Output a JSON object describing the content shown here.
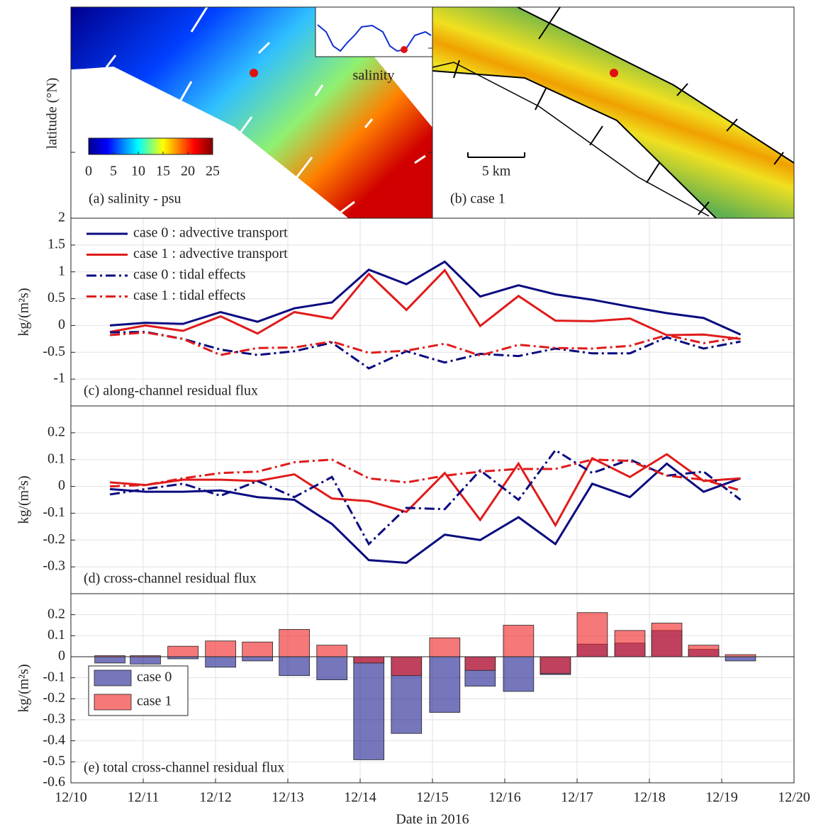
{
  "maps": {
    "ylabel": "latitude (°N)",
    "panel_a_label": "(a) salinity - psu",
    "panel_b_label": "(b) case 1",
    "inset_label": "salinity",
    "scale_bar": "5 km",
    "colorbar": {
      "lim": [
        0,
        25
      ],
      "ticks": [
        0,
        5,
        10,
        15,
        20,
        25
      ]
    }
  },
  "chart_data": [
    {
      "type": "line",
      "label": "(c) along-channel residual flux",
      "ylabel": "kg/(m²s)",
      "x": [
        10.54,
        11.03,
        11.55,
        12.07,
        12.58,
        13.09,
        13.61,
        14.12,
        14.64,
        15.17,
        15.66,
        16.19,
        16.7,
        17.21,
        17.73,
        18.24,
        18.75,
        19.26
      ],
      "xlim": [
        10,
        20
      ],
      "ylim": [
        -1.5,
        2
      ],
      "yticks": [
        -1,
        -0.5,
        0,
        0.5,
        1,
        1.5,
        2
      ],
      "grid": true,
      "legend": "upper left",
      "series": [
        {
          "name": "case 0 : advective transport",
          "color": "#0a0a80",
          "linestyle": "-",
          "values": [
            0,
            0.05,
            0.03,
            0.25,
            0.07,
            0.32,
            0.43,
            1.04,
            0.77,
            1.19,
            0.54,
            0.75,
            0.58,
            0.48,
            0.35,
            0.23,
            0.14,
            -0.17
          ]
        },
        {
          "name": "case 1 : advective transport",
          "color": "#e01b1b",
          "linestyle": "-",
          "values": [
            -0.12,
            0,
            -0.1,
            0.17,
            -0.15,
            0.25,
            0.13,
            0.96,
            0.29,
            1.03,
            -0.01,
            0.55,
            0.09,
            0.08,
            0.13,
            -0.18,
            -0.17,
            -0.25
          ]
        },
        {
          "name": "case 0 : tidal effects",
          "color": "#0a0a80",
          "linestyle": "-.",
          "values": [
            -0.13,
            -0.12,
            -0.25,
            -0.45,
            -0.55,
            -0.48,
            -0.32,
            -0.8,
            -0.48,
            -0.69,
            -0.53,
            -0.57,
            -0.43,
            -0.52,
            -0.52,
            -0.22,
            -0.43,
            -0.3
          ]
        },
        {
          "name": "case 1 : tidal effects",
          "color": "#e01b1b",
          "linestyle": "-.",
          "values": [
            -0.18,
            -0.13,
            -0.25,
            -0.55,
            -0.42,
            -0.41,
            -0.3,
            -0.51,
            -0.47,
            -0.34,
            -0.56,
            -0.36,
            -0.42,
            -0.43,
            -0.38,
            -0.18,
            -0.33,
            -0.22
          ]
        }
      ]
    },
    {
      "type": "line",
      "label": "(d) cross-channel residual flux",
      "ylabel": "kg/(m²s)",
      "x": [
        10.54,
        11.03,
        11.55,
        12.07,
        12.58,
        13.09,
        13.61,
        14.12,
        14.64,
        15.17,
        15.66,
        16.19,
        16.7,
        17.21,
        17.73,
        18.24,
        18.75,
        19.26
      ],
      "xlim": [
        10,
        20
      ],
      "ylim": [
        -0.4,
        0.3
      ],
      "yticks": [
        -0.3,
        -0.2,
        -0.1,
        0,
        0.1,
        0.2
      ],
      "grid": true,
      "series": [
        {
          "color": "#0a0a80",
          "linestyle": "-",
          "values": [
            -0.01,
            -0.02,
            -0.02,
            -0.015,
            -0.04,
            -0.05,
            -0.14,
            -0.275,
            -0.285,
            -0.18,
            -0.2,
            -0.115,
            -0.215,
            0.01,
            -0.04,
            0.085,
            -0.02,
            0.03
          ]
        },
        {
          "color": "#e01b1b",
          "linestyle": "-",
          "values": [
            0.015,
            0.005,
            0.025,
            0.025,
            0.02,
            0.045,
            -0.045,
            -0.055,
            -0.095,
            0.05,
            -0.125,
            0.085,
            -0.145,
            0.105,
            0.035,
            0.12,
            0.02,
            0.03
          ]
        },
        {
          "color": "#0a0a80",
          "linestyle": "-.",
          "values": [
            -0.03,
            -0.01,
            0.01,
            -0.035,
            0.02,
            -0.04,
            0.035,
            -0.215,
            -0.08,
            -0.085,
            0.06,
            -0.05,
            0.135,
            0.05,
            0.1,
            0.04,
            0.055,
            -0.05
          ]
        },
        {
          "color": "#e01b1b",
          "linestyle": "-.",
          "values": [
            0,
            0.005,
            0.03,
            0.05,
            0.055,
            0.09,
            0.1,
            0.03,
            0.015,
            0.04,
            0.055,
            0.065,
            0.065,
            0.1,
            0.095,
            0.04,
            0.025,
            -0.015
          ]
        }
      ]
    },
    {
      "type": "bar",
      "label": "(e) total cross-channel residual flux",
      "ylabel": "kg/(m²s)",
      "xlabel": "Date in 2016",
      "x": [
        10.54,
        11.03,
        11.55,
        12.07,
        12.58,
        13.09,
        13.61,
        14.12,
        14.64,
        15.17,
        15.66,
        16.19,
        16.7,
        17.21,
        17.73,
        18.24,
        18.75,
        19.26
      ],
      "xlim": [
        10,
        20
      ],
      "ylim": [
        -0.6,
        0.3
      ],
      "yticks": [
        -0.6,
        -0.5,
        -0.4,
        -0.3,
        -0.2,
        -0.1,
        0,
        0.1,
        0.2
      ],
      "grid": true,
      "legend": "lower left",
      "alpha": 0.6,
      "xticks": [
        {
          "value": 10,
          "label": "12/10"
        },
        {
          "value": 11,
          "label": "12/11"
        },
        {
          "value": 12,
          "label": "12/12"
        },
        {
          "value": 13,
          "label": "12/13"
        },
        {
          "value": 14,
          "label": "12/14"
        },
        {
          "value": 15,
          "label": "12/15"
        },
        {
          "value": 16,
          "label": "12/16"
        },
        {
          "value": 17,
          "label": "12/17"
        },
        {
          "value": 18,
          "label": "12/18"
        },
        {
          "value": 19,
          "label": "12/19"
        },
        {
          "value": 20,
          "label": "12/20"
        }
      ],
      "series": [
        {
          "name": "case 0",
          "color": "#1a1a90",
          "values": [
            -0.03,
            -0.035,
            -0.01,
            -0.05,
            -0.02,
            -0.09,
            -0.11,
            -0.49,
            -0.365,
            -0.265,
            -0.14,
            -0.165,
            -0.085,
            0.06,
            0.065,
            0.125,
            0.035,
            -0.02
          ]
        },
        {
          "name": "case 1",
          "color": "#f01e1e",
          "values": [
            0.005,
            0.005,
            0.05,
            0.075,
            0.07,
            0.13,
            0.055,
            -0.03,
            -0.09,
            0.09,
            -0.065,
            0.15,
            -0.08,
            0.21,
            0.125,
            0.16,
            0.055,
            0.01
          ]
        }
      ]
    }
  ]
}
